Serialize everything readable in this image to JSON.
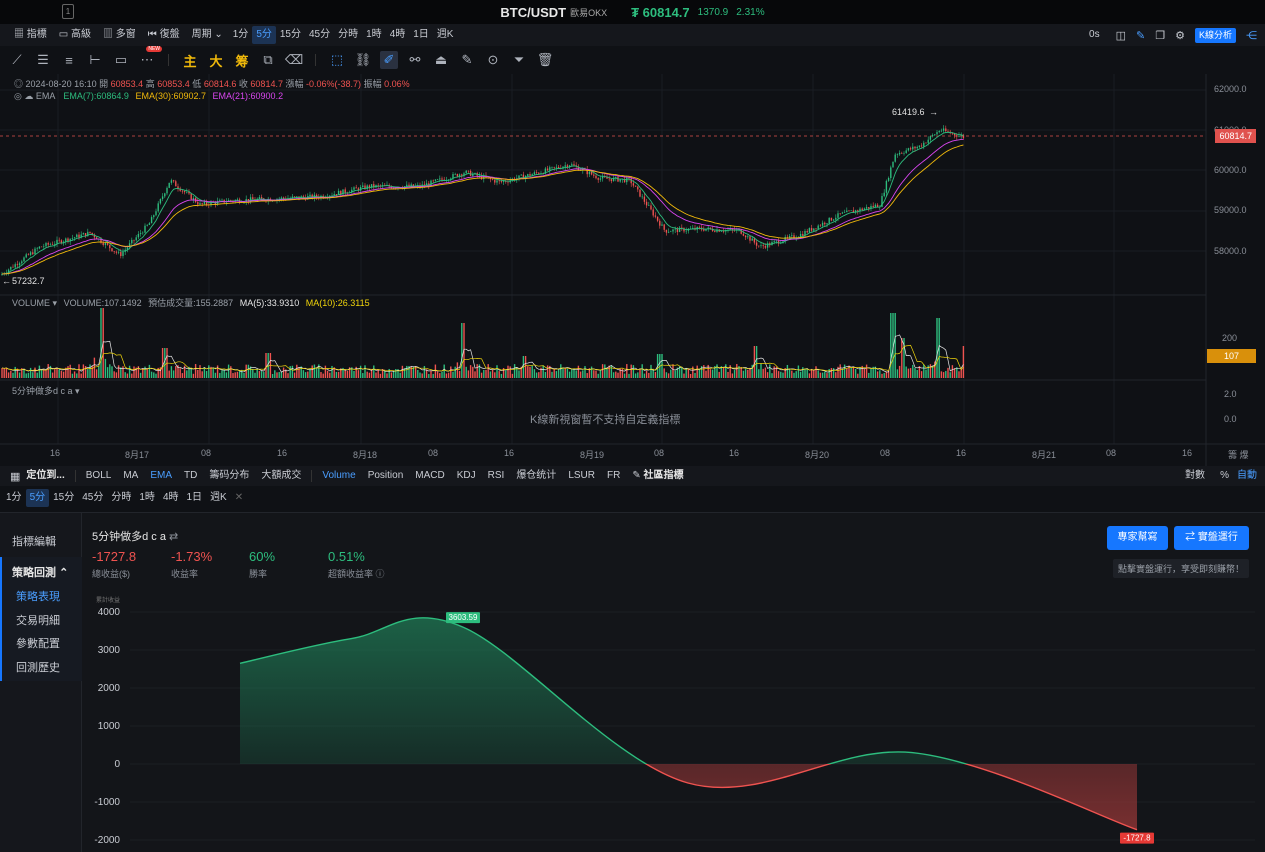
{
  "titlebar": {
    "symbol": "BTC/USDT",
    "exchange": "歐易OKX",
    "last_price": "₮ 60814.7",
    "change": "1370.9",
    "change_pct": "2.31%",
    "win_icon": "1"
  },
  "toolbar1": {
    "items": [
      "指標",
      "高級",
      "多窗",
      "復盤",
      "周期"
    ],
    "timeframes": [
      "1分",
      "5分",
      "15分",
      "45分",
      "分時",
      "1時",
      "4時",
      "1日",
      "週K"
    ],
    "latency": "0s",
    "analysis": "K線分析"
  },
  "toolbar2": {
    "main": "主",
    "big": "大",
    "chips": "筹",
    "new_badge": "NEW"
  },
  "ohlc": {
    "date": "2024-08-20 16:10",
    "open_label": "開",
    "open": "60853.4",
    "high_label": "高",
    "high": "60853.4",
    "low_label": "低",
    "low": "60814.6",
    "close_label": "收",
    "close": "60814.7",
    "chg_label": "漲幅",
    "chg": "-0.06%(-38.7)",
    "amp_label": "振幅",
    "amp": "0.06%"
  },
  "ema": {
    "name": "EMA",
    "ema7": "EMA(7):60864.9",
    "ema30": "EMA(30):60902.7",
    "ema21": "EMA(21):60900.2",
    "c7": "#2dbd7e",
    "c30": "#f0b90b",
    "c21": "#d946ef"
  },
  "price_axis": [
    "62000.0",
    "61000.0",
    "60000.0",
    "59000.0",
    "58000.0"
  ],
  "price_markers": {
    "high": "61419.6",
    "low": "57232.7",
    "current": "60814.7"
  },
  "volume": {
    "name": "VOLUME",
    "value": "VOLUME:107.1492",
    "forecast": "預估成交量:155.2887",
    "ma5": "MA(5):33.9310",
    "ma10": "MA(10):26.3115",
    "axis": "200",
    "current": "107"
  },
  "indicator": {
    "name": "5分钟做多d c a",
    "unsupported": "K線新視窗暫不支持自定義指標",
    "axis": [
      "2.0",
      "0.0"
    ]
  },
  "time_axis": [
    "16",
    "8月17",
    "08",
    "16",
    "8月18",
    "08",
    "16",
    "8月19",
    "08",
    "16",
    "8月20",
    "08",
    "16",
    "8月21",
    "08",
    "16"
  ],
  "axis_corner": "籌 爆",
  "toolbar3": {
    "locate": "定位到...",
    "items": [
      "BOLL",
      "MA",
      "EMA",
      "TD",
      "籌码分布",
      "大額成交"
    ],
    "items2": [
      "Volume",
      "Position",
      "MACD",
      "KDJ",
      "RSI",
      "爆仓统计",
      "LSUR",
      "FR"
    ],
    "community": "社區指標",
    "right": [
      "對數",
      "%",
      "自動"
    ]
  },
  "toolbar4": {
    "timeframes": [
      "1分",
      "5分",
      "15分",
      "45分",
      "分時",
      "1時",
      "4時",
      "1日",
      "週K"
    ],
    "close": "✕"
  },
  "leftnav": {
    "edit": "指標編輯",
    "backtest": "策略回測",
    "subs": [
      "策略表現",
      "交易明細",
      "參數配置",
      "回測歷史"
    ]
  },
  "strategy": {
    "title": "5分钟做多d c a",
    "stats": [
      {
        "value": "-1727.8",
        "label": "總收益($)"
      },
      {
        "value": "-1.73%",
        "label": "收益率"
      },
      {
        "value": "60%",
        "label": "勝率"
      },
      {
        "value": "0.51%",
        "label": "超額收益率"
      }
    ],
    "btn_expert": "專家幫寫",
    "btn_live": "⇄ 實盤運行",
    "hint": "點擊實盤運行，享受即刻賺幣！",
    "ylabel": "累計收益"
  },
  "chart_data": {
    "type": "area",
    "y_ticks": [
      4000,
      3000,
      2000,
      1000,
      0,
      -1000,
      -2000
    ],
    "ylim": [
      -2000,
      4000
    ],
    "values": [
      2650,
      3300,
      3603.59,
      -500,
      300,
      -1727.8
    ],
    "max_label": "3603.59",
    "end_label": "-1727.8",
    "colors": {
      "positive": "#2dbd7e",
      "negative": "#ef5350"
    }
  }
}
